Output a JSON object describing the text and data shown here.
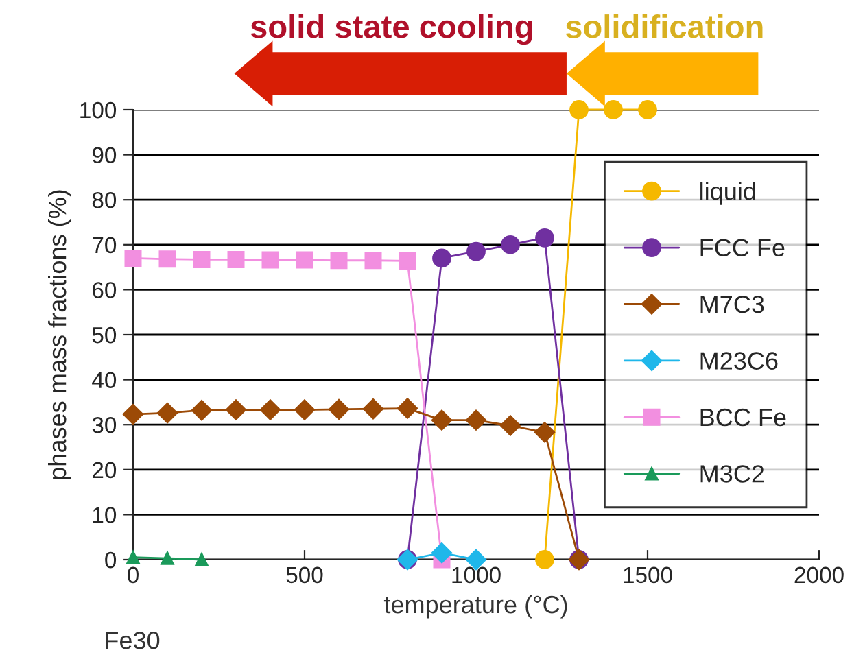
{
  "chart_data": {
    "type": "line",
    "xlabel": "temperature (°C)",
    "ylabel": "phases mass fractions (%)",
    "annotations": [
      "solid state cooling",
      "solidification",
      "Fe30"
    ],
    "xlim": [
      0,
      2000
    ],
    "xticks": [
      0,
      500,
      1000,
      1500,
      2000
    ],
    "ylim": [
      0,
      100
    ],
    "yticks": [
      0,
      10,
      20,
      30,
      40,
      50,
      60,
      70,
      80,
      90,
      100
    ],
    "grid": "y",
    "legend": "right",
    "series": [
      {
        "name": "liquid",
        "color": "#f5b800",
        "marker": "circle",
        "x": [
          1200,
          1300,
          1400,
          1500
        ],
        "values": [
          0,
          100,
          100,
          100
        ]
      },
      {
        "name": "FCC Fe",
        "color": "#7030a0",
        "marker": "circle",
        "x": [
          800,
          900,
          1000,
          1100,
          1200,
          1300
        ],
        "values": [
          0,
          67,
          68.5,
          70,
          71.5,
          0
        ]
      },
      {
        "name": "M7C3",
        "color": "#9c4a06",
        "marker": "diamond",
        "x": [
          0,
          100,
          200,
          300,
          400,
          500,
          600,
          700,
          800,
          900,
          1000,
          1100,
          1200,
          1300
        ],
        "values": [
          32.3,
          32.6,
          33.2,
          33.3,
          33.3,
          33.3,
          33.4,
          33.5,
          33.6,
          31,
          31,
          29.8,
          28.3,
          0
        ]
      },
      {
        "name": "M23C6",
        "color": "#1fb7ea",
        "marker": "diamond",
        "x": [
          800,
          900,
          1000
        ],
        "values": [
          0,
          1.5,
          0
        ]
      },
      {
        "name": "BCC Fe",
        "color": "#f28fe0",
        "marker": "square",
        "x": [
          0,
          100,
          200,
          300,
          400,
          500,
          600,
          700,
          800,
          900
        ],
        "values": [
          67,
          66.8,
          66.7,
          66.7,
          66.6,
          66.6,
          66.5,
          66.5,
          66.4,
          0
        ]
      },
      {
        "name": "M3C2",
        "color": "#1a9a5a",
        "marker": "triangle",
        "x": [
          0,
          100,
          200
        ],
        "values": [
          0.5,
          0.3,
          0
        ]
      }
    ]
  }
}
